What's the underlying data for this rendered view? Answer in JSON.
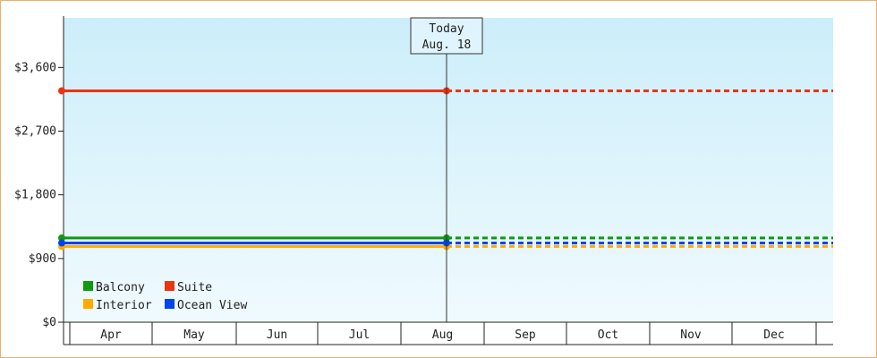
{
  "chart_data": {
    "type": "line",
    "title": "",
    "xlabel": "",
    "ylabel": "",
    "categories": [
      "Apr",
      "May",
      "Jun",
      "Jul",
      "Aug",
      "Sep",
      "Oct",
      "Nov",
      "Dec"
    ],
    "ylim": [
      0,
      4300
    ],
    "yticks": [
      0,
      900,
      1800,
      2700,
      3600
    ],
    "ytick_labels": [
      "$0",
      "$900",
      "$1,800",
      "$2,700",
      "$3,600"
    ],
    "grid": false,
    "legend_position": "bottom-left",
    "today_marker": {
      "line1": "Today",
      "line2": "Aug. 18",
      "date": "Aug 18"
    },
    "series": [
      {
        "name": "Balcony",
        "color": "#119911",
        "value": 1190
      },
      {
        "name": "Suite",
        "color": "#ee3311",
        "value": 3270
      },
      {
        "name": "Interior",
        "color": "#ffaa00",
        "value": 1070
      },
      {
        "name": "Ocean View",
        "color": "#0044ee",
        "value": 1120
      }
    ],
    "actual_range": [
      "Apr 1",
      "Aug 18"
    ],
    "projected_range": [
      "Aug 18",
      "Dec 31"
    ],
    "colors": {
      "background_top": "#cceefa",
      "background_bottom": "#f0fafe",
      "axis": "#222222",
      "border": "#e8b070"
    }
  }
}
